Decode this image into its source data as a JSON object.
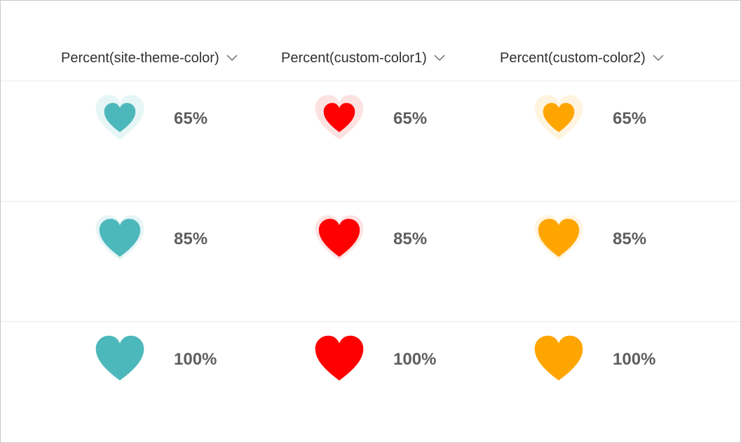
{
  "columns": [
    {
      "label": "Percent(site-theme-color)",
      "color": "#4db8bc",
      "halo": "#e6f5f6"
    },
    {
      "label": "Percent(custom-color1)",
      "color": "#ff0000",
      "halo": "#fde2e2"
    },
    {
      "label": "Percent(custom-color2)",
      "color": "#ffa500",
      "halo": "#fff4e0"
    }
  ],
  "rows": [
    {
      "values": [
        "65%",
        "65%",
        "65%"
      ],
      "fractions": [
        0.65,
        0.65,
        0.65
      ]
    },
    {
      "values": [
        "85%",
        "85%",
        "85%"
      ],
      "fractions": [
        0.85,
        0.85,
        0.85
      ]
    },
    {
      "values": [
        "100%",
        "100%",
        "100%"
      ],
      "fractions": [
        1.0,
        1.0,
        1.0
      ]
    }
  ],
  "icons": {
    "sort": "chevron-down-icon",
    "indicator": "heart-icon"
  }
}
